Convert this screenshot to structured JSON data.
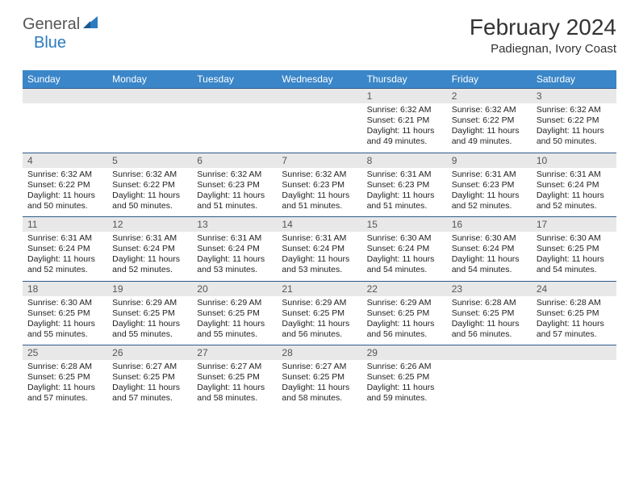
{
  "logo": {
    "text1": "General",
    "text2": "Blue"
  },
  "title": "February 2024",
  "location": "Padiegnan, Ivory Coast",
  "colors": {
    "header_bg": "#3a86c8",
    "header_text": "#ffffff",
    "daynum_bg": "#e8e8e8",
    "daynum_text": "#555555",
    "border": "#2d5a8a",
    "logo_blue": "#2b7bbf"
  },
  "daynames": [
    "Sunday",
    "Monday",
    "Tuesday",
    "Wednesday",
    "Thursday",
    "Friday",
    "Saturday"
  ],
  "weeks": [
    [
      {
        "n": "",
        "sr": "",
        "ss": "",
        "dl": ""
      },
      {
        "n": "",
        "sr": "",
        "ss": "",
        "dl": ""
      },
      {
        "n": "",
        "sr": "",
        "ss": "",
        "dl": ""
      },
      {
        "n": "",
        "sr": "",
        "ss": "",
        "dl": ""
      },
      {
        "n": "1",
        "sr": "Sunrise: 6:32 AM",
        "ss": "Sunset: 6:21 PM",
        "dl": "Daylight: 11 hours and 49 minutes."
      },
      {
        "n": "2",
        "sr": "Sunrise: 6:32 AM",
        "ss": "Sunset: 6:22 PM",
        "dl": "Daylight: 11 hours and 49 minutes."
      },
      {
        "n": "3",
        "sr": "Sunrise: 6:32 AM",
        "ss": "Sunset: 6:22 PM",
        "dl": "Daylight: 11 hours and 50 minutes."
      }
    ],
    [
      {
        "n": "4",
        "sr": "Sunrise: 6:32 AM",
        "ss": "Sunset: 6:22 PM",
        "dl": "Daylight: 11 hours and 50 minutes."
      },
      {
        "n": "5",
        "sr": "Sunrise: 6:32 AM",
        "ss": "Sunset: 6:22 PM",
        "dl": "Daylight: 11 hours and 50 minutes."
      },
      {
        "n": "6",
        "sr": "Sunrise: 6:32 AM",
        "ss": "Sunset: 6:23 PM",
        "dl": "Daylight: 11 hours and 51 minutes."
      },
      {
        "n": "7",
        "sr": "Sunrise: 6:32 AM",
        "ss": "Sunset: 6:23 PM",
        "dl": "Daylight: 11 hours and 51 minutes."
      },
      {
        "n": "8",
        "sr": "Sunrise: 6:31 AM",
        "ss": "Sunset: 6:23 PM",
        "dl": "Daylight: 11 hours and 51 minutes."
      },
      {
        "n": "9",
        "sr": "Sunrise: 6:31 AM",
        "ss": "Sunset: 6:23 PM",
        "dl": "Daylight: 11 hours and 52 minutes."
      },
      {
        "n": "10",
        "sr": "Sunrise: 6:31 AM",
        "ss": "Sunset: 6:24 PM",
        "dl": "Daylight: 11 hours and 52 minutes."
      }
    ],
    [
      {
        "n": "11",
        "sr": "Sunrise: 6:31 AM",
        "ss": "Sunset: 6:24 PM",
        "dl": "Daylight: 11 hours and 52 minutes."
      },
      {
        "n": "12",
        "sr": "Sunrise: 6:31 AM",
        "ss": "Sunset: 6:24 PM",
        "dl": "Daylight: 11 hours and 52 minutes."
      },
      {
        "n": "13",
        "sr": "Sunrise: 6:31 AM",
        "ss": "Sunset: 6:24 PM",
        "dl": "Daylight: 11 hours and 53 minutes."
      },
      {
        "n": "14",
        "sr": "Sunrise: 6:31 AM",
        "ss": "Sunset: 6:24 PM",
        "dl": "Daylight: 11 hours and 53 minutes."
      },
      {
        "n": "15",
        "sr": "Sunrise: 6:30 AM",
        "ss": "Sunset: 6:24 PM",
        "dl": "Daylight: 11 hours and 54 minutes."
      },
      {
        "n": "16",
        "sr": "Sunrise: 6:30 AM",
        "ss": "Sunset: 6:24 PM",
        "dl": "Daylight: 11 hours and 54 minutes."
      },
      {
        "n": "17",
        "sr": "Sunrise: 6:30 AM",
        "ss": "Sunset: 6:25 PM",
        "dl": "Daylight: 11 hours and 54 minutes."
      }
    ],
    [
      {
        "n": "18",
        "sr": "Sunrise: 6:30 AM",
        "ss": "Sunset: 6:25 PM",
        "dl": "Daylight: 11 hours and 55 minutes."
      },
      {
        "n": "19",
        "sr": "Sunrise: 6:29 AM",
        "ss": "Sunset: 6:25 PM",
        "dl": "Daylight: 11 hours and 55 minutes."
      },
      {
        "n": "20",
        "sr": "Sunrise: 6:29 AM",
        "ss": "Sunset: 6:25 PM",
        "dl": "Daylight: 11 hours and 55 minutes."
      },
      {
        "n": "21",
        "sr": "Sunrise: 6:29 AM",
        "ss": "Sunset: 6:25 PM",
        "dl": "Daylight: 11 hours and 56 minutes."
      },
      {
        "n": "22",
        "sr": "Sunrise: 6:29 AM",
        "ss": "Sunset: 6:25 PM",
        "dl": "Daylight: 11 hours and 56 minutes."
      },
      {
        "n": "23",
        "sr": "Sunrise: 6:28 AM",
        "ss": "Sunset: 6:25 PM",
        "dl": "Daylight: 11 hours and 56 minutes."
      },
      {
        "n": "24",
        "sr": "Sunrise: 6:28 AM",
        "ss": "Sunset: 6:25 PM",
        "dl": "Daylight: 11 hours and 57 minutes."
      }
    ],
    [
      {
        "n": "25",
        "sr": "Sunrise: 6:28 AM",
        "ss": "Sunset: 6:25 PM",
        "dl": "Daylight: 11 hours and 57 minutes."
      },
      {
        "n": "26",
        "sr": "Sunrise: 6:27 AM",
        "ss": "Sunset: 6:25 PM",
        "dl": "Daylight: 11 hours and 57 minutes."
      },
      {
        "n": "27",
        "sr": "Sunrise: 6:27 AM",
        "ss": "Sunset: 6:25 PM",
        "dl": "Daylight: 11 hours and 58 minutes."
      },
      {
        "n": "28",
        "sr": "Sunrise: 6:27 AM",
        "ss": "Sunset: 6:25 PM",
        "dl": "Daylight: 11 hours and 58 minutes."
      },
      {
        "n": "29",
        "sr": "Sunrise: 6:26 AM",
        "ss": "Sunset: 6:25 PM",
        "dl": "Daylight: 11 hours and 59 minutes."
      },
      {
        "n": "",
        "sr": "",
        "ss": "",
        "dl": ""
      },
      {
        "n": "",
        "sr": "",
        "ss": "",
        "dl": ""
      }
    ]
  ]
}
